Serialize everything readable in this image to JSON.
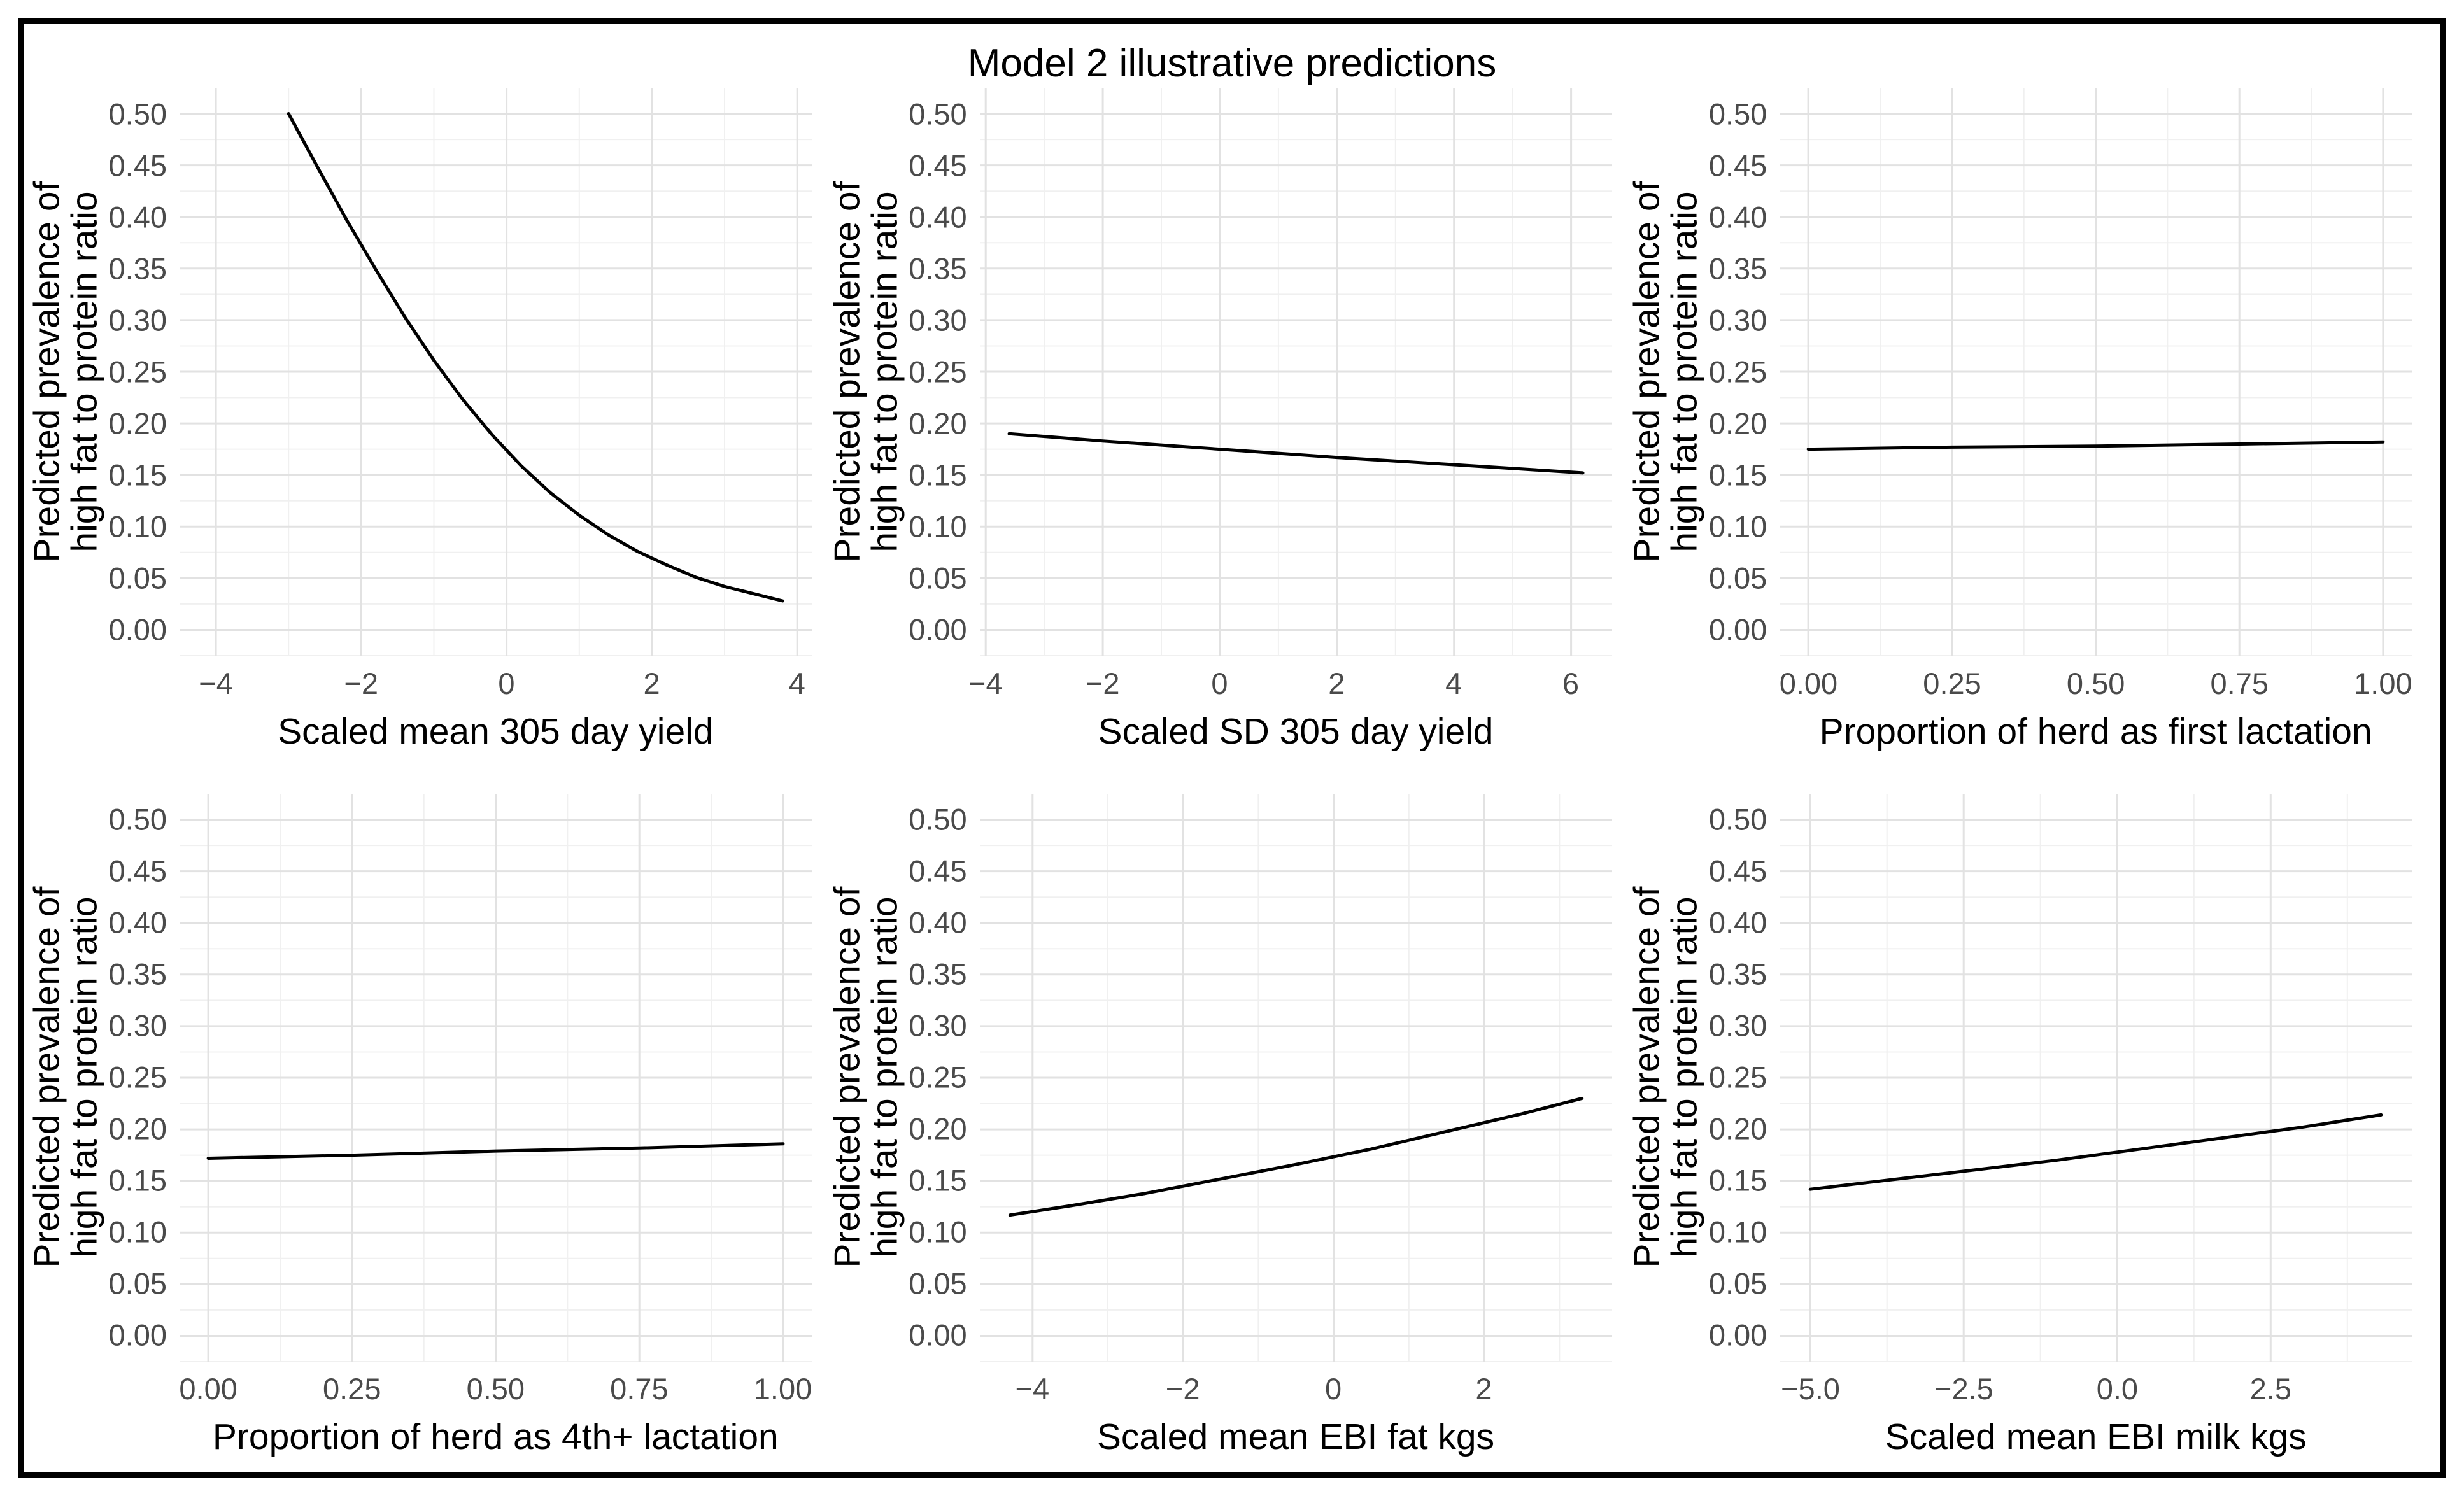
{
  "title": "Model 2 illustrative predictions",
  "colors": {
    "background": "#ffffff",
    "frame_border": "#000000",
    "grid_major": "#e2e2e2",
    "grid_minor": "#f0f0f0",
    "line": "#000000",
    "tick_label": "#4a4a4a",
    "axis_title": "#000000"
  },
  "y_axis": {
    "label_line1": "Predicted prevalence of",
    "label_line2": "high fat to protein ratio",
    "lim": [
      -0.025,
      0.525
    ],
    "ticks": [
      {
        "v": 0.0,
        "label": "0.00"
      },
      {
        "v": 0.05,
        "label": "0.05"
      },
      {
        "v": 0.1,
        "label": "0.10"
      },
      {
        "v": 0.15,
        "label": "0.15"
      },
      {
        "v": 0.2,
        "label": "0.20"
      },
      {
        "v": 0.25,
        "label": "0.25"
      },
      {
        "v": 0.3,
        "label": "0.30"
      },
      {
        "v": 0.35,
        "label": "0.35"
      },
      {
        "v": 0.4,
        "label": "0.40"
      },
      {
        "v": 0.45,
        "label": "0.45"
      },
      {
        "v": 0.5,
        "label": "0.50"
      }
    ],
    "minor": [
      -0.025,
      0.025,
      0.075,
      0.125,
      0.175,
      0.225,
      0.275,
      0.325,
      0.375,
      0.425,
      0.475,
      0.525
    ]
  },
  "chart_data": [
    {
      "type": "line",
      "xlabel": "Scaled mean 305 day yield",
      "xlim": [
        -4.5,
        4.2
      ],
      "x_ticks": [
        {
          "v": -4,
          "label": "−4"
        },
        {
          "v": -2,
          "label": "−2"
        },
        {
          "v": 0,
          "label": "0"
        },
        {
          "v": 2,
          "label": "2"
        },
        {
          "v": 4,
          "label": "4"
        }
      ],
      "x_minor": [
        -3,
        -1,
        1,
        3
      ],
      "series": [
        {
          "name": "predicted prevalence",
          "x": [
            -3.0,
            -2.6,
            -2.2,
            -1.8,
            -1.4,
            -1.0,
            -0.6,
            -0.2,
            0.2,
            0.6,
            1.0,
            1.4,
            1.8,
            2.2,
            2.6,
            3.0,
            3.4,
            3.8
          ],
          "y": [
            0.5,
            0.448,
            0.397,
            0.349,
            0.303,
            0.261,
            0.223,
            0.189,
            0.159,
            0.133,
            0.111,
            0.092,
            0.076,
            0.063,
            0.051,
            0.042,
            0.035,
            0.028
          ]
        }
      ]
    },
    {
      "type": "line",
      "xlabel": "Scaled SD 305 day yield",
      "xlim": [
        -4.1,
        6.7
      ],
      "x_ticks": [
        {
          "v": -4,
          "label": "−4"
        },
        {
          "v": -2,
          "label": "−2"
        },
        {
          "v": 0,
          "label": "0"
        },
        {
          "v": 2,
          "label": "2"
        },
        {
          "v": 4,
          "label": "4"
        },
        {
          "v": 6,
          "label": "6"
        }
      ],
      "x_minor": [
        -3,
        -1,
        1,
        3,
        5
      ],
      "series": [
        {
          "name": "predicted prevalence",
          "x": [
            -3.6,
            -2.0,
            0.0,
            2.0,
            4.0,
            6.2
          ],
          "y": [
            0.19,
            0.183,
            0.175,
            0.167,
            0.16,
            0.152
          ]
        }
      ]
    },
    {
      "type": "line",
      "xlabel": "Proportion of herd as first lactation",
      "xlim": [
        -0.05,
        1.05
      ],
      "x_ticks": [
        {
          "v": 0.0,
          "label": "0.00"
        },
        {
          "v": 0.25,
          "label": "0.25"
        },
        {
          "v": 0.5,
          "label": "0.50"
        },
        {
          "v": 0.75,
          "label": "0.75"
        },
        {
          "v": 1.0,
          "label": "1.00"
        }
      ],
      "x_minor": [
        0.125,
        0.375,
        0.625,
        0.875
      ],
      "series": [
        {
          "name": "predicted prevalence",
          "x": [
            0.0,
            0.25,
            0.5,
            0.75,
            1.0
          ],
          "y": [
            0.175,
            0.177,
            0.178,
            0.18,
            0.182
          ]
        }
      ]
    },
    {
      "type": "line",
      "xlabel": "Proportion of herd as 4th+ lactation",
      "xlim": [
        -0.05,
        1.05
      ],
      "x_ticks": [
        {
          "v": 0.0,
          "label": "0.00"
        },
        {
          "v": 0.25,
          "label": "0.25"
        },
        {
          "v": 0.5,
          "label": "0.50"
        },
        {
          "v": 0.75,
          "label": "0.75"
        },
        {
          "v": 1.0,
          "label": "1.00"
        }
      ],
      "x_minor": [
        0.125,
        0.375,
        0.625,
        0.875
      ],
      "series": [
        {
          "name": "predicted prevalence",
          "x": [
            0.0,
            0.25,
            0.5,
            0.75,
            1.0
          ],
          "y": [
            0.172,
            0.175,
            0.179,
            0.182,
            0.186
          ]
        }
      ]
    },
    {
      "type": "line",
      "xlabel": "Scaled mean EBI fat kgs",
      "xlim": [
        -4.7,
        3.7
      ],
      "x_ticks": [
        {
          "v": -4,
          "label": "−4"
        },
        {
          "v": -2,
          "label": "−2"
        },
        {
          "v": 0,
          "label": "0"
        },
        {
          "v": 2,
          "label": "2"
        }
      ],
      "x_minor": [
        -3,
        -1,
        1,
        3
      ],
      "series": [
        {
          "name": "predicted prevalence",
          "x": [
            -4.3,
            -3.5,
            -2.5,
            -1.5,
            -0.5,
            0.5,
            1.5,
            2.5,
            3.3
          ],
          "y": [
            0.117,
            0.126,
            0.138,
            0.152,
            0.166,
            0.181,
            0.198,
            0.215,
            0.23
          ]
        }
      ]
    },
    {
      "type": "line",
      "xlabel": "Scaled mean EBI milk kgs",
      "xlim": [
        -5.5,
        4.8
      ],
      "x_ticks": [
        {
          "v": -5.0,
          "label": "−5.0"
        },
        {
          "v": -2.5,
          "label": "−2.5"
        },
        {
          "v": 0.0,
          "label": "0.0"
        },
        {
          "v": 2.5,
          "label": "2.5"
        }
      ],
      "x_minor": [
        -3.75,
        -1.25,
        1.25,
        3.75
      ],
      "series": [
        {
          "name": "predicted prevalence",
          "x": [
            -5.0,
            -4.0,
            -3.0,
            -2.0,
            -1.0,
            0.0,
            1.0,
            2.0,
            3.0,
            4.3
          ],
          "y": [
            0.142,
            0.149,
            0.156,
            0.163,
            0.17,
            0.178,
            0.186,
            0.194,
            0.202,
            0.214
          ]
        }
      ]
    }
  ]
}
